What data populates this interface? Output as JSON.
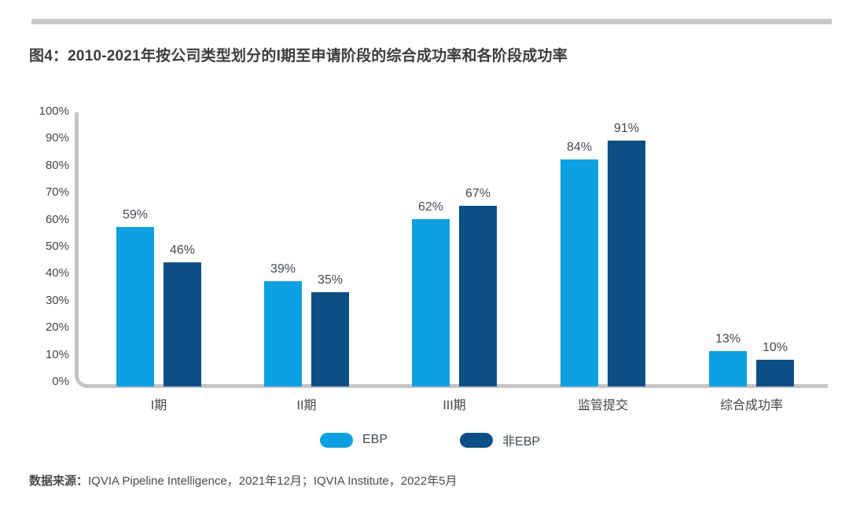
{
  "header": {
    "title": "图4：2010-2021年按公司类型划分的I期至申请阶段的综合成功率和各阶段成功率"
  },
  "chart_data": {
    "type": "bar",
    "categories": [
      "I期",
      "II期",
      "III期",
      "监管提交",
      "综合成功率"
    ],
    "series": [
      {
        "name": "EBP",
        "color": "#0ca0e0",
        "values": [
          59,
          39,
          62,
          84,
          13
        ]
      },
      {
        "name": "非EBP",
        "color": "#0d4e87",
        "values": [
          46,
          35,
          67,
          91,
          10
        ]
      }
    ],
    "value_labels": [
      [
        "59%",
        "39%",
        "62%",
        "84%",
        "13%"
      ],
      [
        "46%",
        "35%",
        "67%",
        "91%",
        "10%"
      ]
    ],
    "yticks": [
      "0%",
      "10%",
      "20%",
      "30%",
      "40%",
      "50%",
      "60%",
      "70%",
      "80%",
      "90%",
      "100%"
    ],
    "ylim": [
      0,
      100
    ],
    "xlabel": "",
    "ylabel": "",
    "grid": false,
    "legend_position": "bottom",
    "axis_color": "#c5c5c5"
  },
  "footer": {
    "source_label": "数据来源：",
    "source_text": "IQVIA Pipeline Intelligence，2021年12月；IQVIA Institute，2022年5月"
  }
}
